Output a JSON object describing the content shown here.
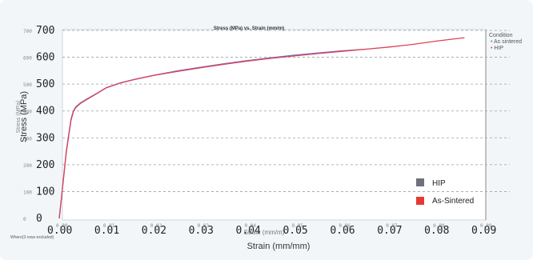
{
  "chart_data": {
    "type": "line",
    "title": "Stress (MPa) vs. Strain (mm/m)",
    "xlabel": "Strain (mm/mm)",
    "xlabel_ghost": "Strain (mm/m)",
    "ylabel": "Stress (MPa)",
    "ylabel_ghost": "Stress (MPa)",
    "xlim": [
      0,
      0.09
    ],
    "ylim": [
      0,
      700
    ],
    "x_ticks": [
      "0.00",
      "0.01",
      "0.02",
      "0.03",
      "0.04",
      "0.05",
      "0.06",
      "0.07",
      "0.08",
      "0.09"
    ],
    "x_ticks_ghost": [
      "0.00",
      "0.01",
      "0.02",
      "0.03",
      "0.04",
      "0.05",
      "0.06",
      "0.07",
      "0.08",
      "0.09"
    ],
    "y_ticks": [
      "700",
      "600",
      "500",
      "400",
      "300",
      "200",
      "100",
      "0"
    ],
    "y_ticks_ghost": [
      "700",
      "600",
      "500",
      "400",
      "300",
      "200",
      "100",
      "0"
    ],
    "grid": true,
    "legend_position": "bottom-right",
    "legend_title": "Condition",
    "legend_small": [
      "As sintered",
      "HIP"
    ],
    "legend": [
      "HIP",
      "As-Sintered"
    ],
    "footnote": "Where(3 rows excluded)",
    "series": [
      {
        "name": "HIP",
        "color": "#6a6fd0",
        "x": [
          0.0,
          0.0005,
          0.0015,
          0.0025,
          0.003,
          0.0035,
          0.0045,
          0.006,
          0.008,
          0.01,
          0.013,
          0.016,
          0.02,
          0.025,
          0.03,
          0.035,
          0.04,
          0.045,
          0.05,
          0.055,
          0.06,
          0.065
        ],
        "y": [
          0,
          80,
          250,
          370,
          400,
          415,
          430,
          446,
          466,
          487,
          505,
          518,
          533,
          549,
          563,
          576,
          588,
          598,
          608,
          616,
          624,
          630
        ]
      },
      {
        "name": "As-Sintered",
        "color": "#dd4455",
        "x": [
          0.0,
          0.0005,
          0.0015,
          0.0025,
          0.003,
          0.0035,
          0.0045,
          0.006,
          0.008,
          0.01,
          0.013,
          0.016,
          0.02,
          0.025,
          0.03,
          0.035,
          0.04,
          0.045,
          0.05,
          0.055,
          0.06,
          0.065,
          0.07,
          0.075,
          0.08,
          0.086
        ],
        "y": [
          0,
          78,
          245,
          365,
          397,
          412,
          428,
          444,
          465,
          486,
          504,
          517,
          532,
          547,
          561,
          574,
          586,
          596,
          605,
          614,
          622,
          630,
          638,
          648,
          660,
          673
        ]
      }
    ],
    "legend_colors": {
      "HIP": "#6e717b",
      "As-Sintered": "#e53935"
    }
  }
}
